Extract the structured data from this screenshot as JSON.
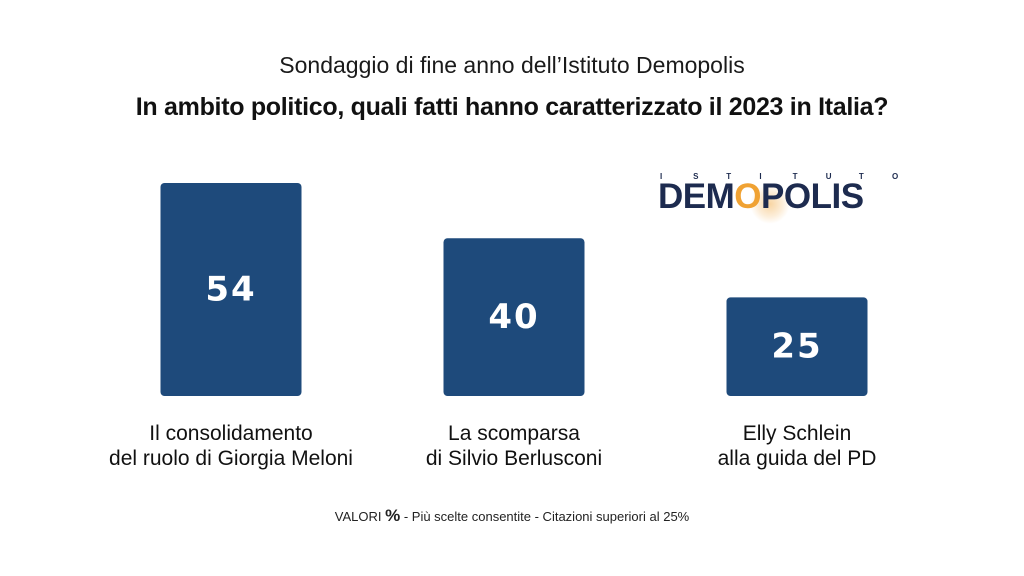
{
  "header": {
    "subtitle": "Sondaggio di fine anno dell’Istituto Demopolis",
    "title": "In ambito politico, quali fatti hanno caratterizzato il 2023 in Italia?"
  },
  "logo": {
    "tagline": "I S T I T U T O",
    "name": "DEMOPOLIS",
    "accent_color": "#f0a233",
    "text_color": "#1d2b4f"
  },
  "chart_data": {
    "type": "bar",
    "categories": [
      "Il consolidamento del ruolo di Giorgia Meloni",
      "La scomparsa di Silvio Berlusconi",
      "Elly Schlein alla guida del PD"
    ],
    "category_lines": [
      [
        "Il consolidamento",
        "del ruolo di Giorgia Meloni"
      ],
      [
        "La scomparsa",
        "di Silvio Berlusconi"
      ],
      [
        "Elly Schlein",
        "alla guida del PD"
      ]
    ],
    "values": [
      54,
      40,
      25
    ],
    "value_labels": [
      "54",
      "40",
      "25"
    ],
    "bar_color": "#1e4a7b",
    "title": "In ambito politico, quali fatti hanno caratterizzato il 2023 in Italia?",
    "xlabel": "",
    "ylabel": "",
    "grid": false
  },
  "footnote": {
    "prefix": "VALORI",
    "unit": "%",
    "text": "- Più scelte consentite - Citazioni superiori al 25%"
  }
}
